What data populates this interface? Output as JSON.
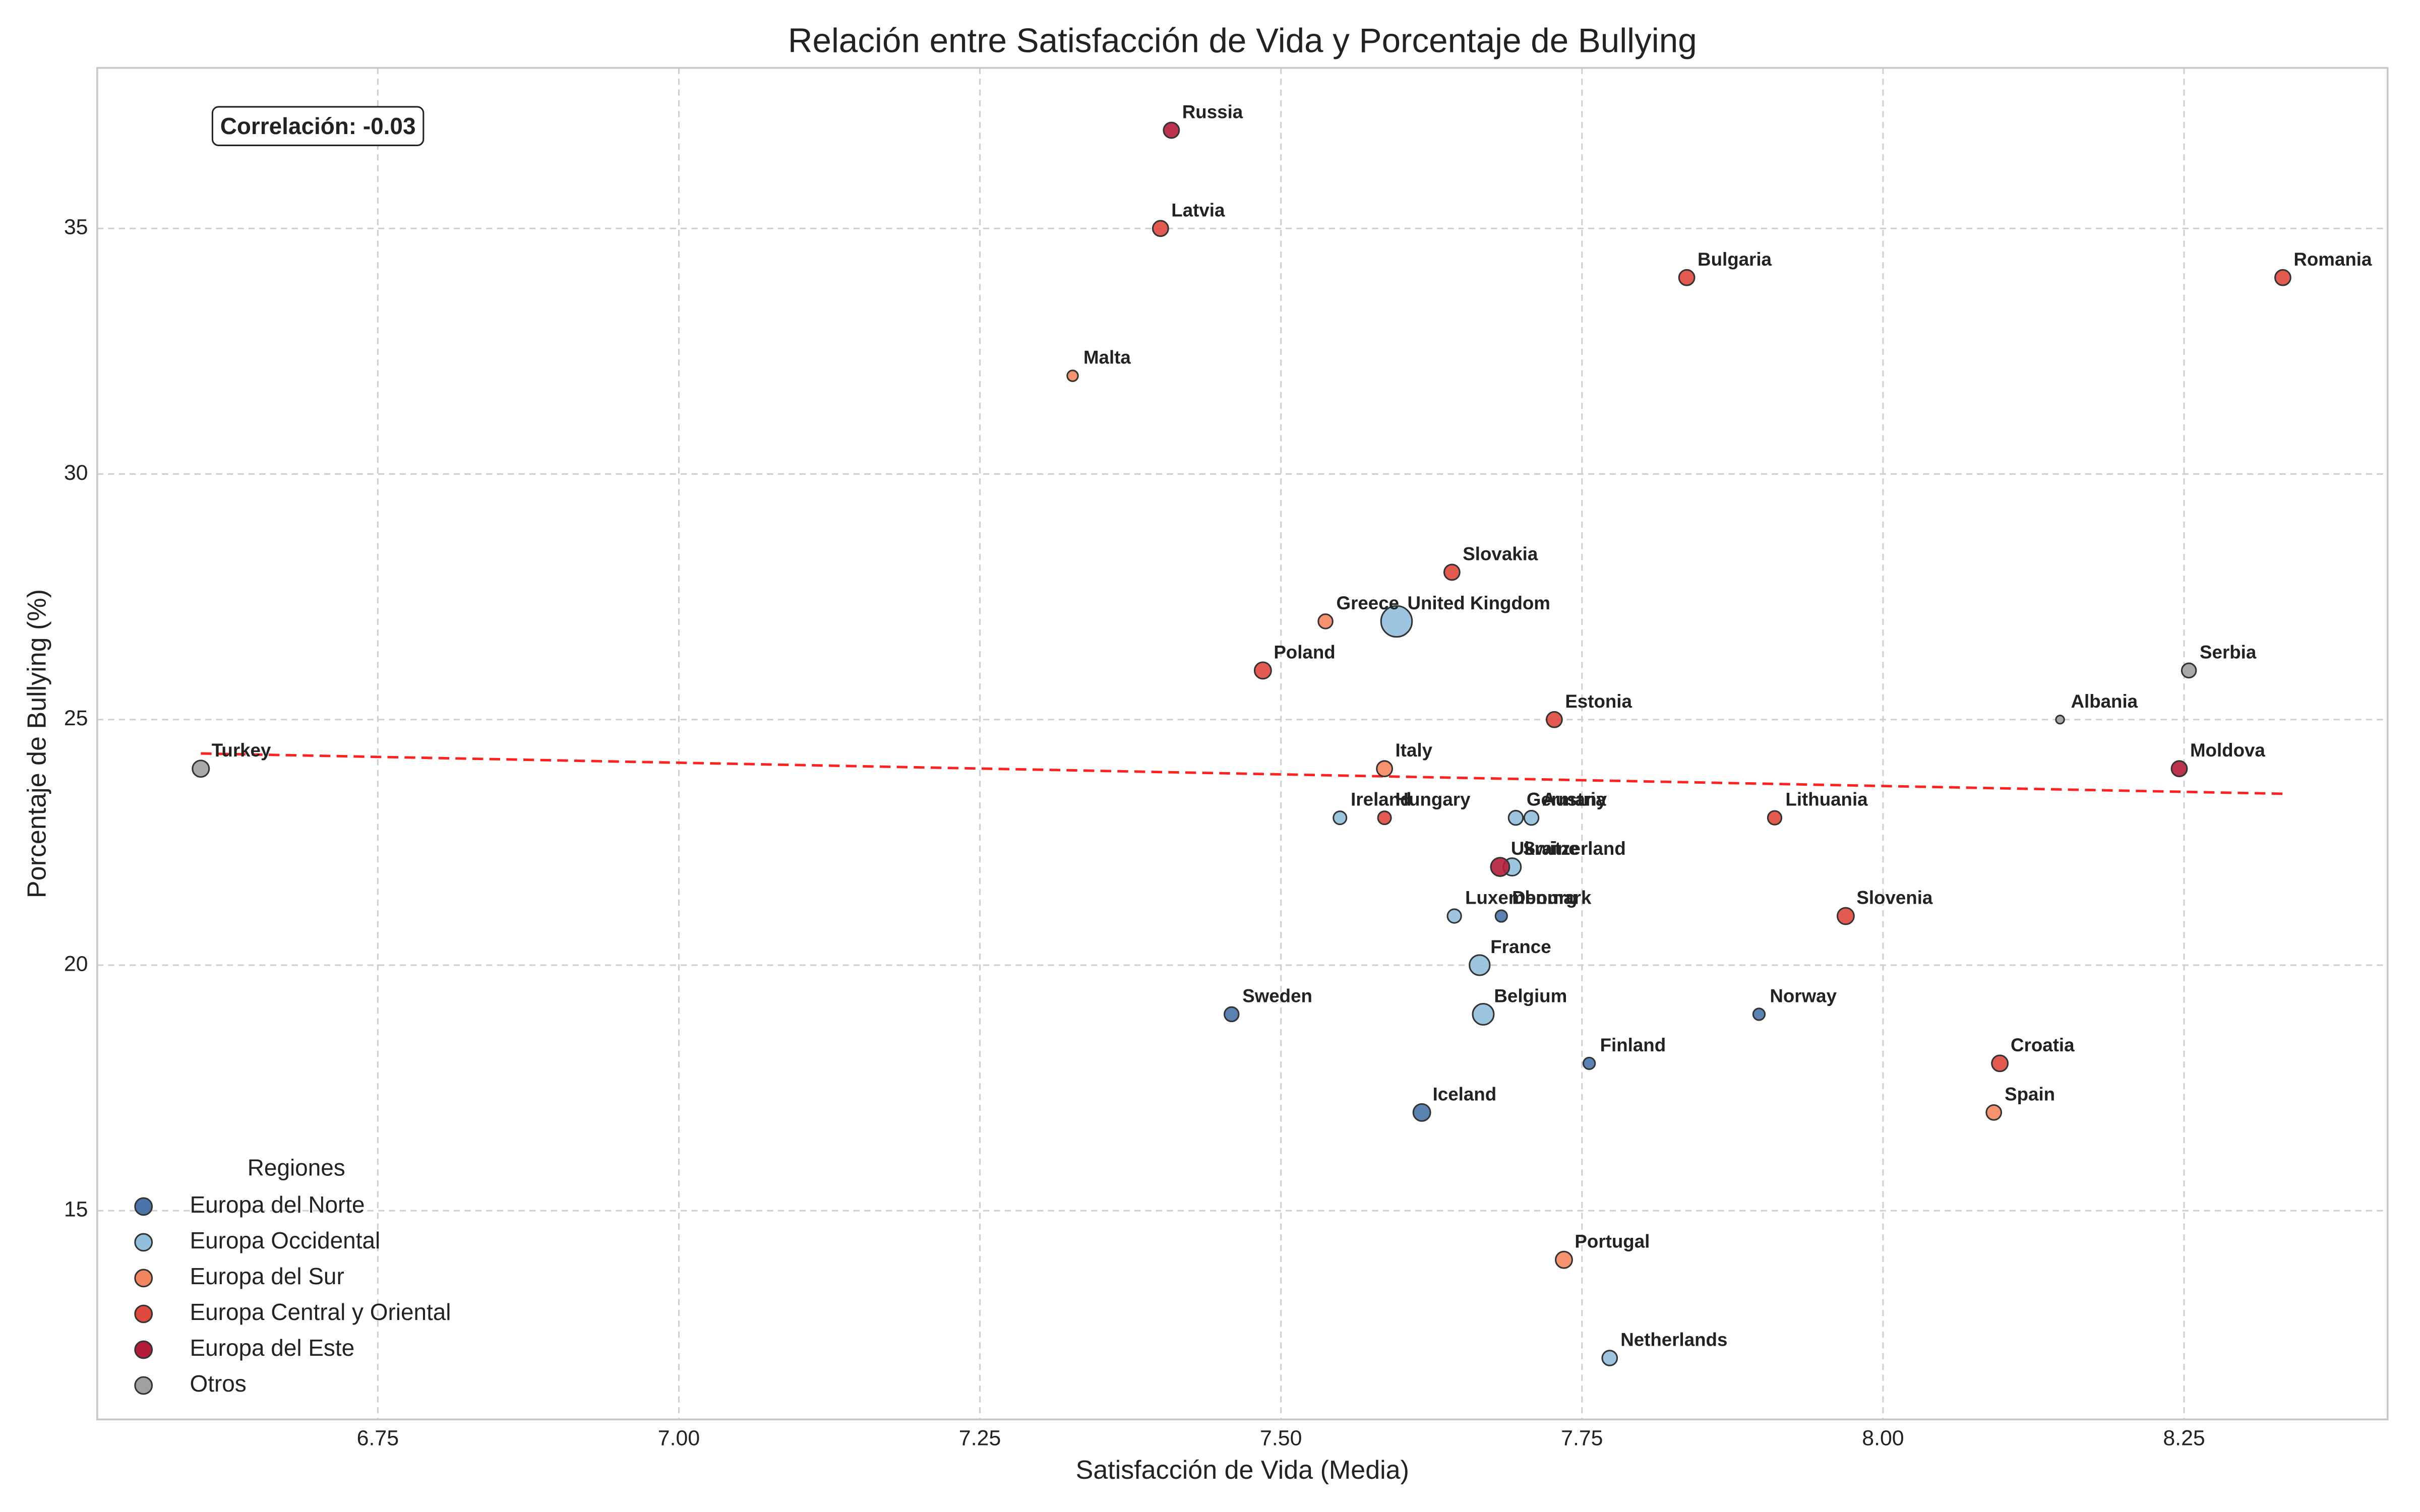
{
  "chart_data": {
    "type": "scatter",
    "title": "Relación entre Satisfacción de Vida y Porcentaje de Bullying",
    "x_label": "Satisfacción de Vida (Media)",
    "y_label": "Porcentaje de Bullying (%)",
    "annotation": "Correlación: -0.03",
    "legend_title": "Regiones",
    "legend_position": "lower left",
    "grid": true,
    "xlim": [
      6.517,
      8.419
    ],
    "ylim": [
      10.75,
      38.27
    ],
    "xticks": [
      6.75,
      {
        "value": 7,
        "label": "7.00"
      },
      7.25,
      {
        "value": 7.5,
        "label": "7.50"
      },
      7.75,
      {
        "value": 8,
        "label": "8.00"
      },
      8.25
    ],
    "yticks": [
      15,
      20,
      25,
      30,
      35
    ],
    "trendline": {
      "color": "#ff2020",
      "x": [
        6.603,
        8.332
      ],
      "y": [
        24.31,
        23.49
      ]
    },
    "series": [
      {
        "name": "Europa del Norte",
        "color": "#4a74aa",
        "labels": [
          "Sweden",
          "Norway",
          "Finland",
          "Iceland",
          "Denmark"
        ],
        "x": [
          7.459,
          7.897,
          7.756,
          7.617,
          7.683
        ],
        "y": [
          19,
          19,
          18,
          17,
          21
        ],
        "sizes": [
          60,
          40,
          40,
          85,
          40
        ]
      },
      {
        "name": "Europa Occidental",
        "color": "#92bfdc",
        "labels": [
          "United Kingdom",
          "Ireland",
          "Germany",
          "Austria",
          "Switzerland",
          "Luxembourg",
          "France",
          "Belgium",
          "Netherlands"
        ],
        "x": [
          7.596,
          7.549,
          7.695,
          7.708,
          7.692,
          7.644,
          7.665,
          7.668,
          7.773
        ],
        "y": [
          27,
          23,
          23,
          23,
          22,
          21,
          20,
          19,
          12
        ],
        "sizes": [
          280,
          50,
          60,
          60,
          90,
          55,
          120,
          130,
          65
        ]
      },
      {
        "name": "Europa del Sur",
        "color": "#f4865f",
        "labels": [
          "Malta",
          "Greece",
          "Italy",
          "Spain",
          "Portugal"
        ],
        "x": [
          7.327,
          7.537,
          7.586,
          8.092,
          7.735
        ],
        "y": [
          32,
          27,
          24,
          17,
          14
        ],
        "sizes": [
          34,
          60,
          70,
          65,
          80
        ]
      },
      {
        "name": "Europa Central y Oriental",
        "color": "#e0493d",
        "labels": [
          "Latvia",
          "Bulgaria",
          "Romania",
          "Slovakia",
          "Poland",
          "Estonia",
          "Hungary",
          "Lithuania",
          "Slovenia",
          "Croatia"
        ],
        "x": [
          7.4,
          7.837,
          8.332,
          7.642,
          7.485,
          7.727,
          7.586,
          7.91,
          7.969,
          8.097
        ],
        "y": [
          35,
          34,
          34,
          28,
          26,
          25,
          23,
          23,
          21,
          18
        ],
        "sizes": [
          70,
          70,
          70,
          70,
          80,
          70,
          50,
          55,
          80,
          75
        ]
      },
      {
        "name": "Europa del Este",
        "color": "#b41d3a",
        "labels": [
          "Russia",
          "Moldova",
          "Ukraine"
        ],
        "x": [
          7.409,
          8.246,
          7.682
        ],
        "y": [
          37,
          24,
          22
        ],
        "sizes": [
          70,
          70,
          100
        ]
      },
      {
        "name": "Otros",
        "color": "#a0a0a0",
        "labels": [
          "Turkey",
          "Serbia",
          "Albania"
        ],
        "x": [
          6.603,
          8.254,
          8.147
        ],
        "y": [
          24,
          26,
          25
        ],
        "sizes": [
          80,
          60,
          20
        ]
      }
    ]
  }
}
